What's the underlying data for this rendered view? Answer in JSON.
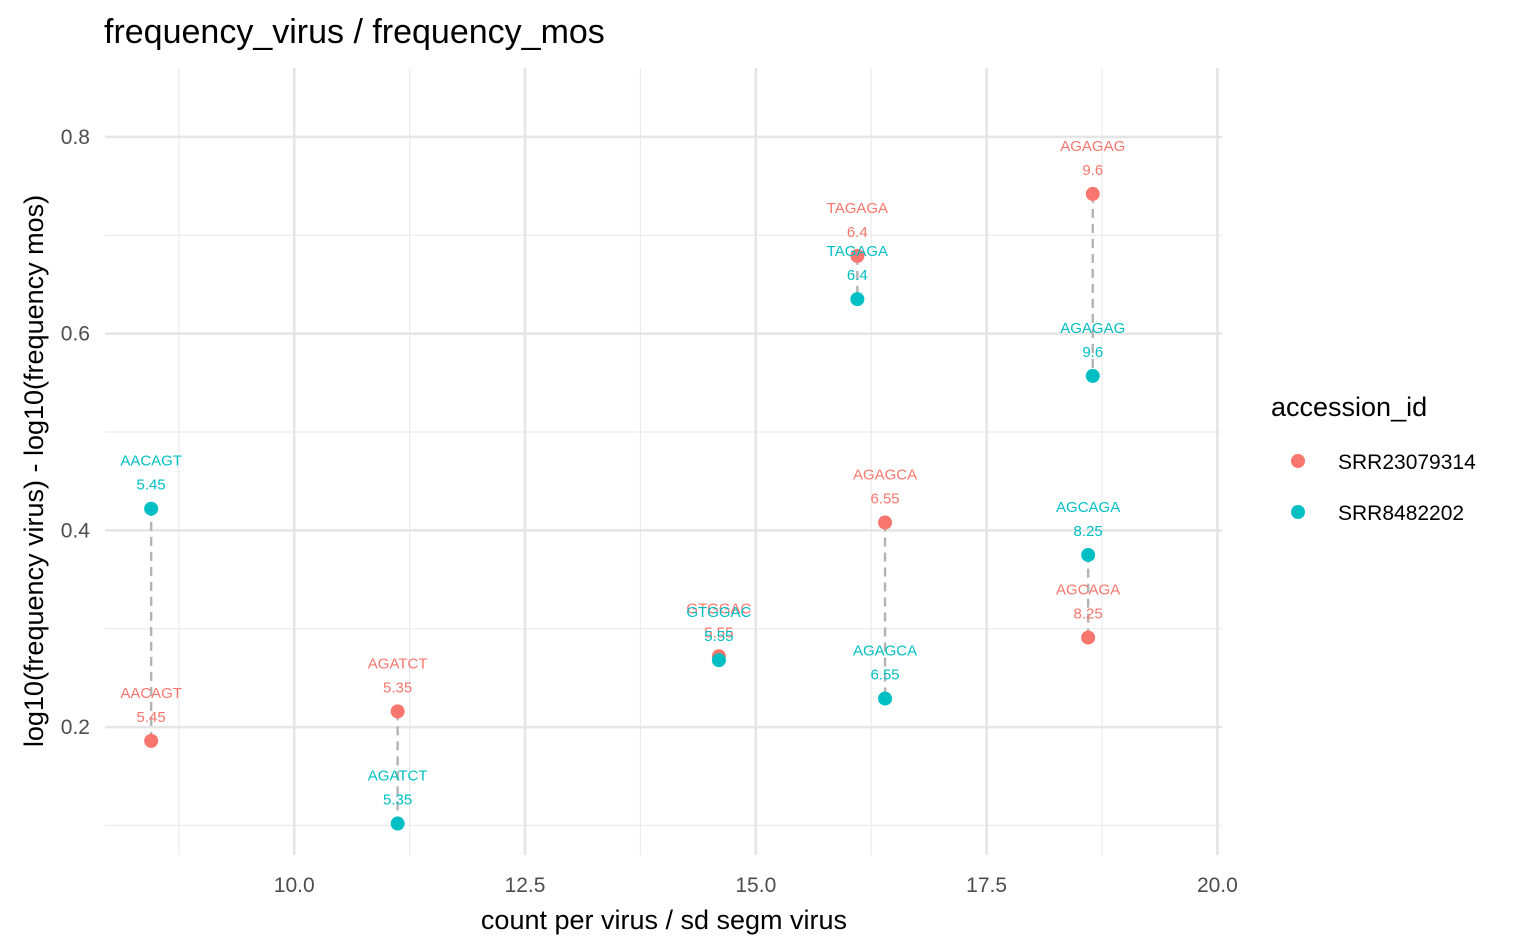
{
  "chart_data": {
    "type": "scatter",
    "title": "frequency_virus / frequency_mos",
    "xlabel": "count per virus / sd segm virus",
    "ylabel": "log10(frequency virus) - log10(frequency mos)",
    "xlim": [
      7.95,
      20.05
    ],
    "ylim": [
      0.07,
      0.87
    ],
    "x_ticks": [
      10.0,
      12.5,
      15.0,
      17.5,
      20.0
    ],
    "x_tick_labels": [
      "10.0",
      "12.5",
      "15.0",
      "17.5",
      "20.0"
    ],
    "x_minor_ticks": [
      8.75,
      11.25,
      13.75,
      16.25,
      18.75
    ],
    "y_ticks": [
      0.2,
      0.4,
      0.6,
      0.8
    ],
    "y_tick_labels": [
      "0.2",
      "0.4",
      "0.6",
      "0.8"
    ],
    "y_minor_ticks": [
      0.1,
      0.3,
      0.5,
      0.7
    ],
    "grid": true,
    "legend": {
      "title": "accession_id",
      "position": "right",
      "entries": [
        {
          "label": "SRR23079314",
          "color": "#F8766D"
        },
        {
          "label": "SRR8482202",
          "color": "#00BFC4"
        }
      ]
    },
    "series": [
      {
        "name": "SRR23079314",
        "color": "#F8766D",
        "points": [
          {
            "x": 8.45,
            "y": 0.186,
            "motif": "AACAGT",
            "value": "5.45"
          },
          {
            "x": 11.12,
            "y": 0.216,
            "motif": "AGATCT",
            "value": "5.35"
          },
          {
            "x": 14.6,
            "y": 0.272,
            "motif": "GTGGAC",
            "value": "5.55"
          },
          {
            "x": 16.1,
            "y": 0.679,
            "motif": "TAGAGA",
            "value": "6.4"
          },
          {
            "x": 16.4,
            "y": 0.408,
            "motif": "AGAGCA",
            "value": "6.55"
          },
          {
            "x": 18.6,
            "y": 0.291,
            "motif": "AGCAGA",
            "value": "8.25"
          },
          {
            "x": 18.65,
            "y": 0.742,
            "motif": "AGAGAG",
            "value": "9.6"
          }
        ]
      },
      {
        "name": "SRR8482202",
        "color": "#00BFC4",
        "points": [
          {
            "x": 8.45,
            "y": 0.422,
            "motif": "AACAGT",
            "value": "5.45"
          },
          {
            "x": 11.12,
            "y": 0.102,
            "motif": "AGATCT",
            "value": "5.35"
          },
          {
            "x": 14.6,
            "y": 0.268,
            "motif": "GTGGAC",
            "value": "5.55"
          },
          {
            "x": 16.1,
            "y": 0.635,
            "motif": "TAGAGA",
            "value": "6.4"
          },
          {
            "x": 16.4,
            "y": 0.229,
            "motif": "AGAGCA",
            "value": "6.55"
          },
          {
            "x": 18.6,
            "y": 0.375,
            "motif": "AGCAGA",
            "value": "8.25"
          },
          {
            "x": 18.65,
            "y": 0.557,
            "motif": "AGAGAG",
            "value": "9.6"
          }
        ]
      }
    ]
  }
}
